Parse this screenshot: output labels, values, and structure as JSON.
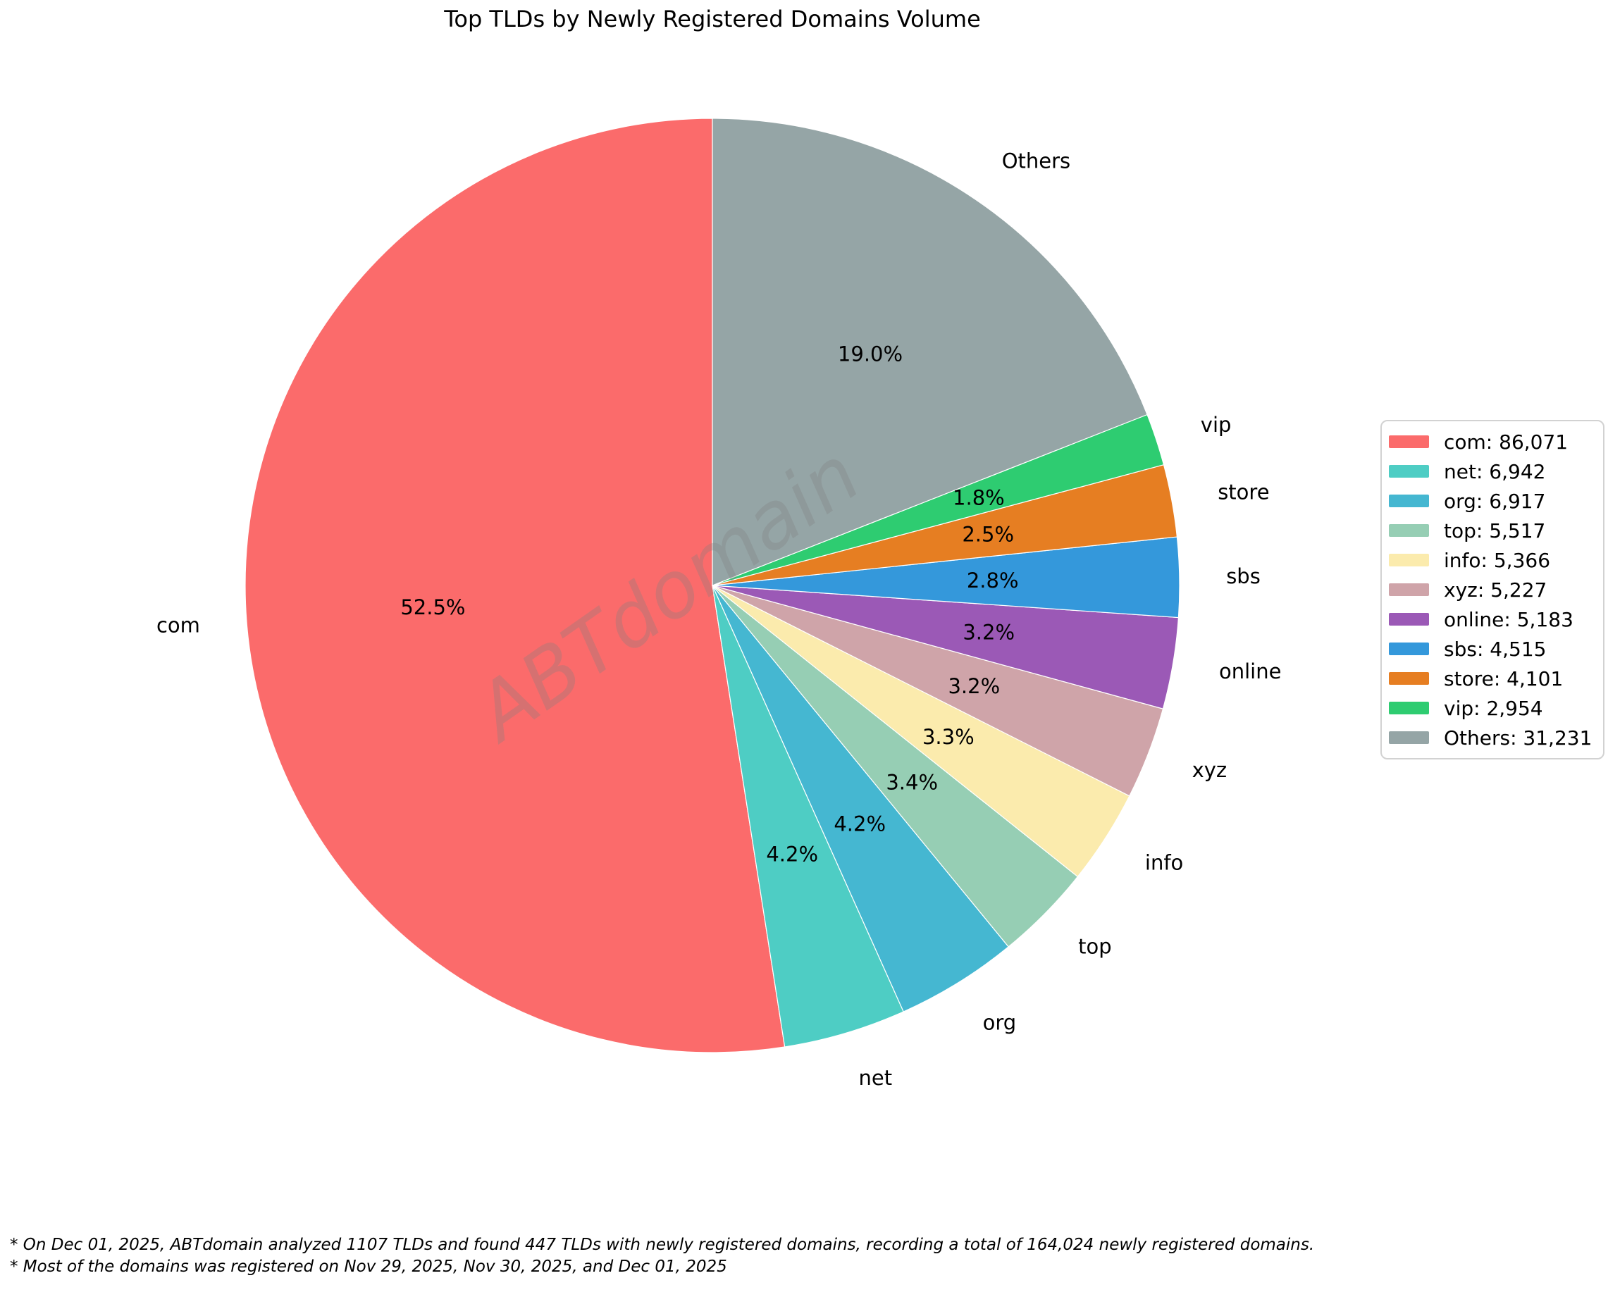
{
  "title": "Top TLDs by Newly Registered Domains Volume",
  "watermark": "ABTdomain",
  "footnotes": {
    "line1": "* On Dec 01, 2025, ABTdomain analyzed 1107 TLDs and found 447 TLDs with newly registered domains, recording a total of 164,024 newly registered domains.",
    "line2": "* Most of the domains was registered on Nov 29, 2025, Nov 30, 2025, and Dec 01, 2025"
  },
  "chart_data": {
    "type": "pie",
    "title": "Top TLDs by Newly Registered Domains Volume",
    "categories": [
      "com",
      "net",
      "org",
      "top",
      "info",
      "xyz",
      "online",
      "sbs",
      "store",
      "vip",
      "Others"
    ],
    "values": [
      86071,
      6942,
      6917,
      5517,
      5366,
      5227,
      5183,
      4515,
      4101,
      2954,
      31231
    ],
    "total": 164024,
    "percent_labels": [
      "52.5%",
      "4.2%",
      "4.2%",
      "3.4%",
      "3.3%",
      "3.2%",
      "3.2%",
      "2.8%",
      "2.5%",
      "1.8%",
      "19.0%"
    ],
    "legend_labels": [
      "com: 86,071",
      "net: 6,942",
      "org: 6,917",
      "top: 5,517",
      "info: 5,366",
      "xyz: 5,227",
      "online: 5,183",
      "sbs: 4,515",
      "store: 4,101",
      "vip: 2,954",
      "Others: 31,231"
    ],
    "colors": [
      "#FB6B6B",
      "#4ECDC4",
      "#45B7D1",
      "#96CEB4",
      "#FBEBAD",
      "#CFA4A9",
      "#9B59B6",
      "#3498DB",
      "#E67E22",
      "#2ECC71",
      "#95A5A6"
    ],
    "start_angle_deg": 90,
    "direction": "counterclockwise",
    "label_distance": 1.1,
    "pct_distance": 0.6,
    "legend_position": "center right"
  }
}
